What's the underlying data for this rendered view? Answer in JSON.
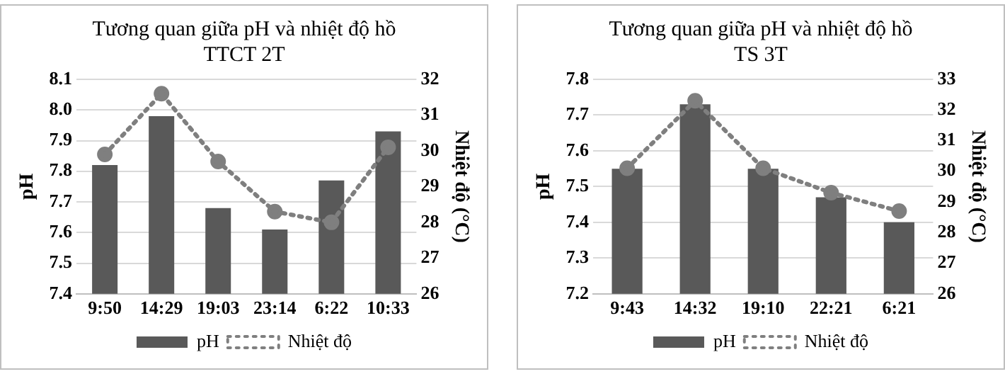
{
  "chart_data": [
    {
      "type": "bar",
      "title": "Tương quan giữa pH và nhiệt độ hồ\nTTCT 2T",
      "ylabel": "pH",
      "y2label": "Nhiệt độ (°C)",
      "categories": [
        "9:50",
        "14:29",
        "19:03",
        "23:14",
        "6:22",
        "10:33"
      ],
      "series": [
        {
          "name": "pH",
          "color": "#595959",
          "values": [
            7.82,
            7.98,
            7.68,
            7.61,
            7.77,
            7.93
          ]
        },
        {
          "name": "Nhiệt độ",
          "type": "line",
          "axis": "y2",
          "color": "#7f7f7f",
          "marker": "circle",
          "line_style": "dotted",
          "values": [
            29.9,
            31.6,
            29.7,
            28.3,
            28.0,
            30.1
          ]
        }
      ],
      "ylim": [
        7.4,
        8.1
      ],
      "yticks": [
        {
          "value": 7.4,
          "label": "7.4"
        },
        {
          "value": 7.5,
          "label": "7.5"
        },
        {
          "value": 7.6,
          "label": "7.6"
        },
        {
          "value": 7.7,
          "label": "7.7"
        },
        {
          "value": 7.8,
          "label": "7.8"
        },
        {
          "value": 7.9,
          "label": "7.9"
        },
        {
          "value": 8.0,
          "label": "8.0"
        },
        {
          "value": 8.1,
          "label": "8.1"
        }
      ],
      "y2lim": [
        26,
        32
      ],
      "y2ticks": [
        26,
        27,
        28,
        29,
        30,
        31,
        32
      ],
      "grid": "y",
      "legend": "bottom"
    },
    {
      "type": "bar",
      "title": "Tương quan giữa pH và nhiệt độ hồ\nTS 3T",
      "ylabel": "pH",
      "y2label": "Nhiệt độ (°C)",
      "categories": [
        "9:43",
        "14:32",
        "19:10",
        "22:21",
        "6:21"
      ],
      "series": [
        {
          "name": "pH",
          "color": "#595959",
          "values": [
            7.55,
            7.73,
            7.55,
            7.47,
            7.4
          ]
        },
        {
          "name": "Nhiệt độ",
          "type": "line",
          "axis": "y2",
          "color": "#7f7f7f",
          "marker": "circle",
          "line_style": "dotted",
          "values": [
            30.1,
            32.3,
            30.1,
            29.3,
            28.7
          ]
        }
      ],
      "ylim": [
        7.2,
        7.8
      ],
      "yticks": [
        7.2,
        7.3,
        7.4,
        7.5,
        7.6,
        7.7,
        7.8
      ],
      "y2lim": [
        26,
        33
      ],
      "y2ticks": [
        26,
        27,
        28,
        29,
        30,
        31,
        32,
        33
      ],
      "grid": "y",
      "legend": "bottom"
    }
  ]
}
